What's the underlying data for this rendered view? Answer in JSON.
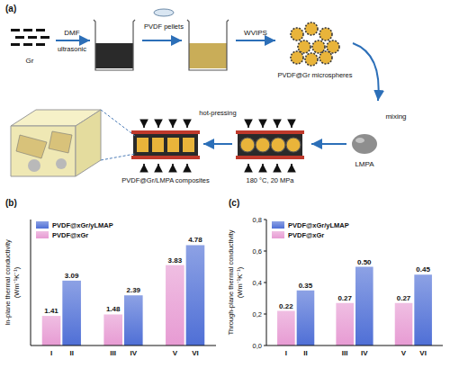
{
  "diagram": {
    "label": "(a)",
    "labels": {
      "gr": "Gr",
      "dmf": "DMF",
      "ultrasonic": "ultrasonic",
      "pvdf_pellets": "PVDF pellets",
      "wvips": "WVIPS",
      "microspheres": "PVDF@Gr microspheres",
      "mixing": "mixing",
      "lmpa": "LMPA",
      "hot_pressing": "hot-pressing",
      "conditions": "180 °C, 20 MPa",
      "composites": "PVDF@Gr/LMPA composites"
    }
  },
  "chart_data": [
    {
      "type": "bar",
      "title": "(b)",
      "ylabel": "In-plane thermal conductivity (Wm⁻¹K⁻¹)",
      "categories": [
        "I",
        "II",
        "III",
        "IV",
        "V",
        "VI"
      ],
      "series": [
        {
          "name": "PVDF@xGr/yLMAP",
          "color": "#4f6fd6",
          "values": [
            null,
            3.09,
            null,
            2.39,
            null,
            4.78
          ]
        },
        {
          "name": "PVDF@xGr",
          "color": "#e79bd3",
          "values": [
            1.41,
            null,
            1.48,
            null,
            3.83,
            null
          ]
        }
      ],
      "ylim": [
        0,
        6
      ],
      "data_labels": true,
      "legend": "upper left",
      "tick_labels": "x"
    },
    {
      "type": "bar",
      "title": "(c)",
      "ylabel": "Through-plane thermal conductivity (Wm⁻¹K⁻¹)",
      "categories": [
        "I",
        "II",
        "III",
        "IV",
        "V",
        "VI"
      ],
      "series": [
        {
          "name": "PVDF@xGr/yLMAP",
          "color": "#4f6fd6",
          "values": [
            null,
            0.35,
            null,
            0.5,
            null,
            0.45
          ],
          "value_labels": [
            null,
            "0.35",
            null,
            "0.50",
            null,
            "0.45"
          ]
        },
        {
          "name": "PVDF@xGr",
          "color": "#e79bd3",
          "values": [
            0.22,
            null,
            0.27,
            null,
            0.27,
            null
          ],
          "value_labels": [
            "0.22",
            null,
            "0.27",
            null,
            "0.27",
            null
          ]
        }
      ],
      "ylim": [
        0,
        0.8
      ],
      "yticks": [
        {
          "value": 0,
          "label": "0,0"
        },
        {
          "value": 0.2,
          "label": "0,2"
        },
        {
          "value": 0.4,
          "label": "0,4"
        },
        {
          "value": 0.6,
          "label": "0,6"
        },
        {
          "value": 0.8,
          "label": "0,8"
        }
      ],
      "data_labels": true,
      "legend": "upper left"
    }
  ]
}
